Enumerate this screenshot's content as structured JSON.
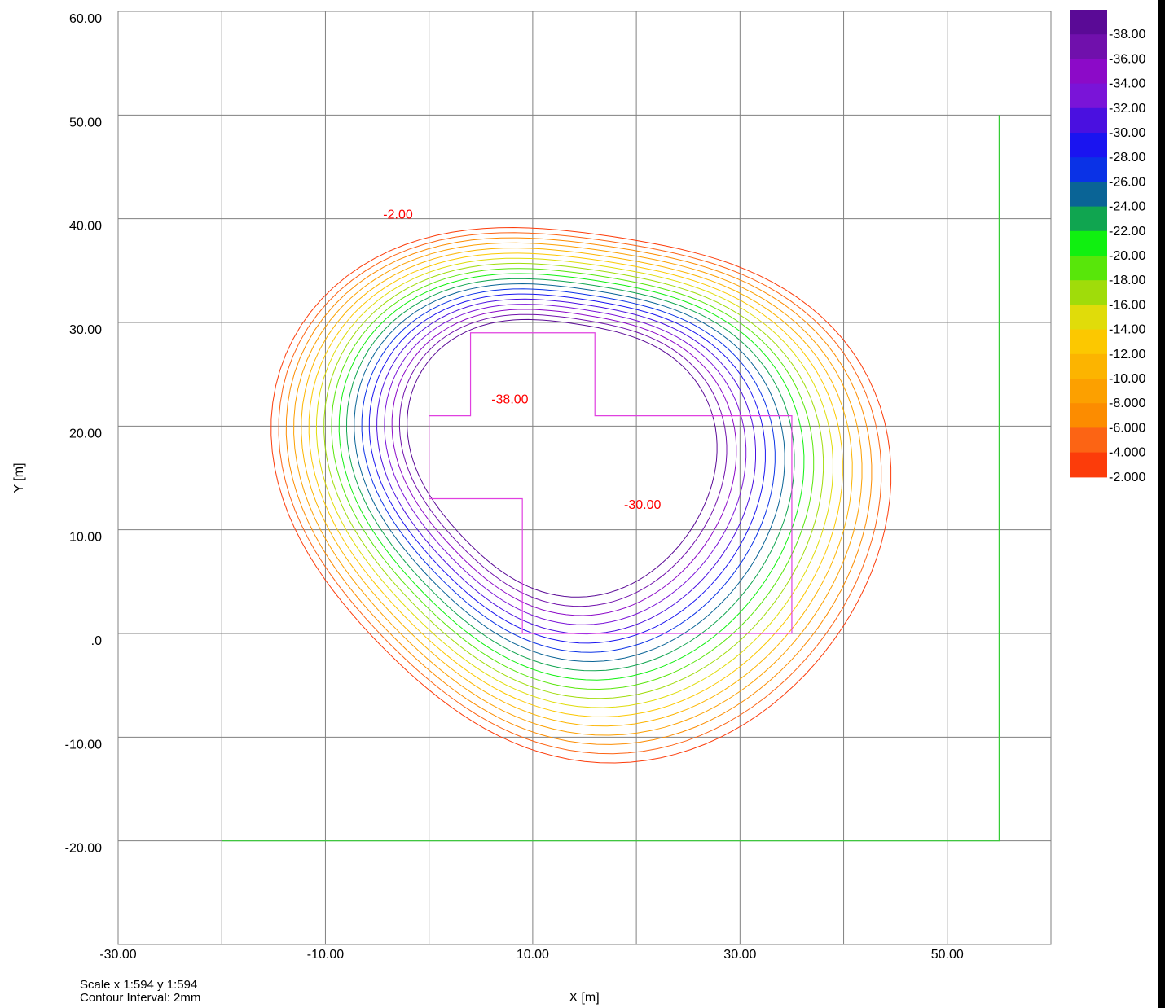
{
  "chart_data": {
    "type": "contour",
    "xlabel": "X [m]",
    "ylabel": "Y [m]",
    "xlim": [
      -30,
      60
    ],
    "ylim": [
      -30,
      60
    ],
    "grid": true,
    "x_ticks": [
      -30,
      -20,
      -10,
      0,
      10,
      20,
      30,
      40,
      50,
      60
    ],
    "y_ticks": [
      -30,
      -20,
      -10,
      0,
      10,
      20,
      30,
      40,
      50,
      60
    ],
    "x_tick_labels": [
      "-30.00",
      "-10.00",
      "10.00",
      "30.00",
      "50.00"
    ],
    "x_tick_label_values": [
      -30,
      -10,
      10,
      30,
      50
    ],
    "y_tick_labels": [
      "60.00",
      "50.00",
      "40.00",
      "30.00",
      "20.00",
      "10.00",
      ".0",
      "-10.00",
      "-20.00"
    ],
    "y_tick_label_values": [
      60,
      50,
      40,
      30,
      20,
      10,
      0,
      -10,
      -20
    ],
    "contour_interval_mm": 2,
    "contour_levels": [
      -2,
      -4,
      -6,
      -8,
      -10,
      -12,
      -14,
      -16,
      -18,
      -20,
      -22,
      -24,
      -26,
      -28,
      -30,
      -32,
      -34,
      -36,
      -38
    ],
    "contour_labels": [
      {
        "text": "-2.00",
        "x": -3.0,
        "y": 40.0
      },
      {
        "text": "-38.00",
        "x": 7.8,
        "y": 22.2
      },
      {
        "text": "-30.00",
        "x": 20.6,
        "y": 12.0
      }
    ],
    "boundary": {
      "x": [
        -20,
        55,
        55
      ],
      "y": [
        -20,
        -20,
        50
      ],
      "color": "#33cc33"
    },
    "building_outline": {
      "x": [
        0,
        4,
        4,
        16,
        16,
        35,
        35,
        9,
        9,
        0,
        0
      ],
      "y": [
        21,
        21,
        29,
        29,
        21,
        21,
        0,
        0,
        13,
        13,
        21
      ],
      "color": "#e040e0"
    },
    "legend": {
      "labels": [
        "-38.00",
        "-36.00",
        "-34.00",
        "-32.00",
        "-30.00",
        "-28.00",
        "-26.00",
        "-24.00",
        "-22.00",
        "-20.00",
        "-18.00",
        "-16.00",
        "-14.00",
        "-12.00",
        "-10.00",
        "-8.000",
        "-6.000",
        "-4.000",
        "-2.000"
      ],
      "colors": [
        "#5a0a96",
        "#7010ac",
        "#8c0ac8",
        "#7a14d8",
        "#4a10e0",
        "#1a14f0",
        "#0a32e6",
        "#0a6496",
        "#10a550",
        "#10f010",
        "#58e60a",
        "#a0dc0a",
        "#e0dc0a",
        "#fcc800",
        "#fcb400",
        "#fca000",
        "#fc8c00",
        "#fc6414",
        "#fc3c0a"
      ]
    }
  },
  "footer": {
    "scale": "Scale x 1:594  y 1:594",
    "interval": "Contour Interval:  2mm"
  }
}
